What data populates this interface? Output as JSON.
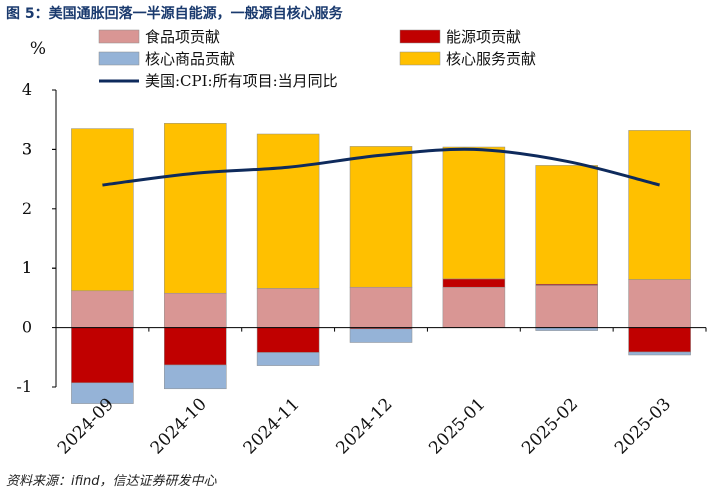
{
  "figure": {
    "title": "图 5：美国通胀回落一半源自能源，一般源自核心服务",
    "source": "资料来源：ifind，信达证券研发中心"
  },
  "chart_data": {
    "type": "bar",
    "stacked": true,
    "unit_label": "%",
    "categories": [
      "2024-09",
      "2024-10",
      "2024-11",
      "2024-12",
      "2025-01",
      "2025-02",
      "2025-03"
    ],
    "ylim": [
      -1,
      4
    ],
    "yticks": [
      "-1",
      "0",
      "1",
      "1",
      "2",
      "3",
      "3",
      "4"
    ],
    "ytick_values": [
      -1,
      0,
      1,
      1,
      2,
      3,
      3,
      4
    ],
    "series": [
      {
        "name": "食品项贡献",
        "color": "#d99694",
        "values": [
          0.62,
          0.58,
          0.66,
          0.68,
          0.68,
          0.71,
          0.81
        ]
      },
      {
        "name": "能源项贡献",
        "color": "#c00000",
        "values": [
          -0.93,
          -0.63,
          -0.42,
          -0.02,
          0.14,
          0.02,
          -0.41
        ]
      },
      {
        "name": "核心商品贡献",
        "color": "#95b3d7",
        "values": [
          -0.35,
          -0.4,
          -0.22,
          -0.23,
          0.0,
          -0.05,
          -0.05
        ]
      },
      {
        "name": "核心服务贡献",
        "color": "#ffc000",
        "values": [
          2.73,
          2.86,
          2.6,
          2.37,
          2.22,
          2.0,
          2.51
        ]
      }
    ],
    "line": {
      "name": "美国:CPI:所有项目:当月同比",
      "color": "#0e2a5c",
      "values": [
        2.4,
        2.6,
        2.7,
        2.9,
        3.0,
        2.8,
        2.4
      ]
    },
    "legend_position": "top"
  }
}
